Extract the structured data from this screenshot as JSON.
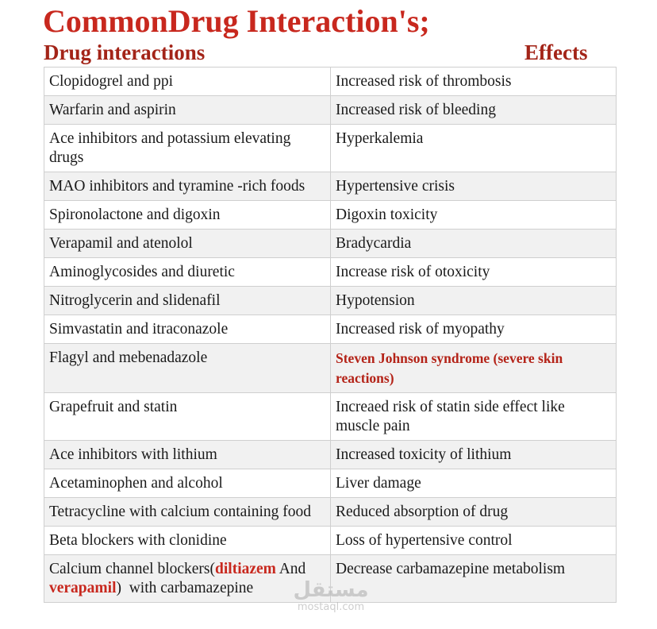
{
  "title": "CommonDrug Interaction's;",
  "headers": {
    "left": "Drug interactions",
    "right": "Effects"
  },
  "rows": [
    {
      "drug": "Clopidogrel and ppi",
      "effect": "Increased risk of thrombosis"
    },
    {
      "drug": "Warfarin and aspirin",
      "effect": "Increased risk of bleeding"
    },
    {
      "drug": "Ace inhibitors and potassium elevating drugs",
      "effect": "Hyperkalemia"
    },
    {
      "drug": "MAO inhibitors and tyramine -rich foods",
      "effect": "Hypertensive crisis"
    },
    {
      "drug": "Spironolactone and digoxin",
      "effect": "Digoxin toxicity"
    },
    {
      "drug": "Verapamil and atenolol",
      "effect": "Bradycardia"
    },
    {
      "drug": "Aminoglycosides and diuretic",
      "effect": "Increase risk of otoxicity"
    },
    {
      "drug": "Nitroglycerin and slidenafil",
      "effect": "Hypotension"
    },
    {
      "drug": "Simvastatin and itraconazole",
      "effect": "Increased risk of myopathy"
    },
    {
      "drug": "Flagyl and mebenadazole",
      "effect": "Steven Johnson syndrome (severe skin reactions)"
    },
    {
      "drug": "Grapefruit and statin",
      "effect": "Increaed risk of statin side effect like muscle pain"
    },
    {
      "drug": "Ace inhibitors with lithium",
      "effect": "Increased toxicity of lithium"
    },
    {
      "drug": "Acetaminophen and alcohol",
      "effect": "Liver damage"
    },
    {
      "drug": "Tetracycline with calcium containing food",
      "effect": "Reduced absorption of drug"
    },
    {
      "drug": "Beta blockers with clonidine",
      "effect": "Loss of hypertensive control"
    }
  ],
  "last_row": {
    "drug_part1": "Calcium channel blockers(",
    "drug_hl1": "diltiazem",
    "drug_part2": " And ",
    "drug_hl2": "verapamil",
    "drug_part3": ")  with carbamazepine",
    "effect": "Decrease carbamazepine metabolism"
  },
  "watermark": {
    "arabic": "مستقل",
    "latin": "mostaql.com"
  },
  "colors": {
    "title": "#c8281e",
    "header": "#a32418",
    "highlight": "#c8281e",
    "row_alt": "#f1f1f1"
  }
}
